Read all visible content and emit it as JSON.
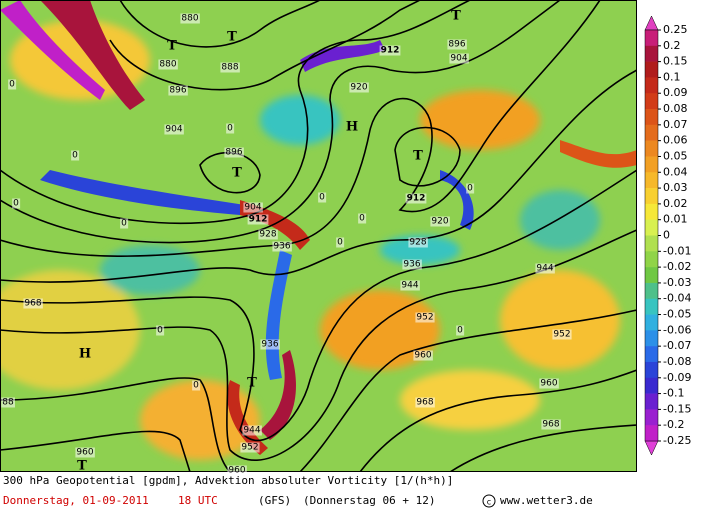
{
  "caption": {
    "title": "300 hPa Geopotential [gpdm], Advektion absoluter Vorticity [1/(h*h)]",
    "date": "Donnerstag, 01-09-2011",
    "time": "18 UTC",
    "model": "(GFS)",
    "run": "(Donnerstag 06 + 12)",
    "credit": "www.wetter3.de"
  },
  "colorbar": {
    "values": [
      0.25,
      0.2,
      0.15,
      0.1,
      0.09,
      0.08,
      0.07,
      0.06,
      0.05,
      0.04,
      0.03,
      0.02,
      0.01,
      0,
      -0.01,
      -0.02,
      -0.03,
      -0.04,
      -0.05,
      -0.06,
      -0.07,
      -0.08,
      -0.09,
      -0.1,
      -0.15,
      -0.2,
      -0.25
    ],
    "colors": [
      "#c81e78",
      "#a8143c",
      "#b01c1c",
      "#c42a1a",
      "#d23c18",
      "#dc5418",
      "#e46c1c",
      "#ec8820",
      "#f2a024",
      "#f6b82a",
      "#f8d030",
      "#f6e838",
      "#d8f050",
      "#b0e050",
      "#90d448",
      "#70c844",
      "#4ec08a",
      "#38c4c0",
      "#30b0e0",
      "#2c90e8",
      "#2a6ae8",
      "#2a44d8",
      "#3a2ad0",
      "#6a20d0",
      "#9a20d0",
      "#c020c8"
    ]
  },
  "contour_labels": [
    880,
    880,
    888,
    896,
    904,
    896,
    904,
    912,
    928,
    936,
    920,
    912,
    896,
    904,
    912,
    920,
    928,
    936,
    944,
    944,
    952,
    952,
    960,
    960,
    968,
    968,
    968,
    936,
    944,
    952,
    960,
    960,
    88,
    0,
    0,
    0,
    0,
    0,
    0,
    0,
    0,
    0,
    0,
    0,
    0
  ],
  "centers": [
    "T",
    "T",
    "T",
    "T",
    "H",
    "T",
    "H",
    "T",
    "T"
  ]
}
